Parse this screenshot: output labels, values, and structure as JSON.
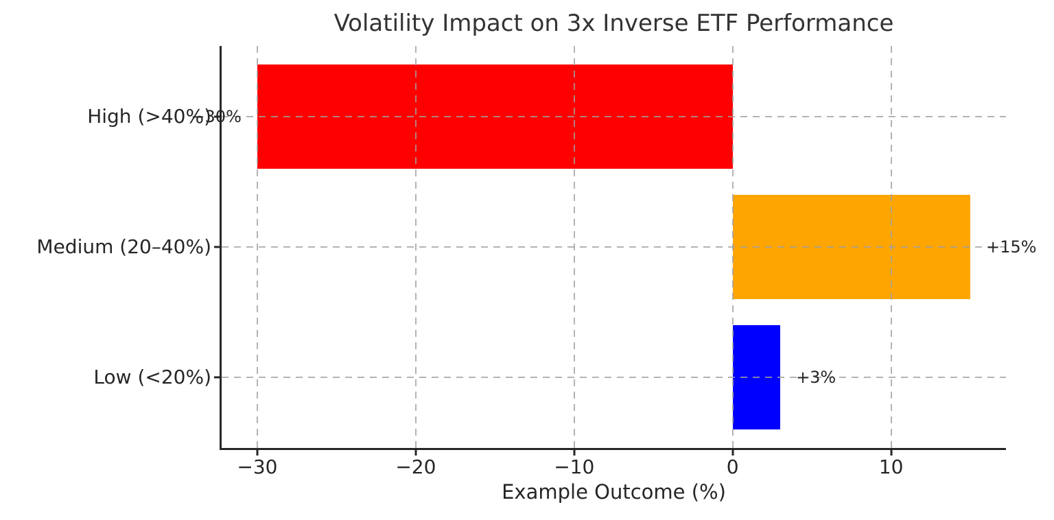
{
  "chart_data": {
    "type": "bar",
    "orientation": "horizontal",
    "title": "Volatility Impact on 3x Inverse ETF Performance",
    "xlabel": "Example Outcome (%)",
    "categories": [
      "High (>40%)",
      "Medium (20–40%)",
      "Low (<20%)"
    ],
    "values": [
      -30,
      15,
      3
    ],
    "value_labels": [
      "−30%",
      "+15%",
      "+3%"
    ],
    "bar_colors": [
      "#ff0000",
      "#ffa500",
      "#0000ff"
    ],
    "xticks": [
      -30,
      -20,
      -10,
      0,
      10
    ],
    "xtick_labels": [
      "−30",
      "−20",
      "−10",
      "0",
      "10"
    ],
    "xlim": [
      -32.25,
      17.25
    ],
    "ylim": [
      -0.54,
      2.54
    ],
    "bar_thickness": 0.8,
    "value_label_offset_units": 1,
    "grid": true,
    "grid_line_style": "dashed",
    "legend": "none",
    "colors": {
      "grid": "#b0b0b0",
      "text": "#262626",
      "spine": "#262626",
      "background": "#ffffff"
    }
  }
}
